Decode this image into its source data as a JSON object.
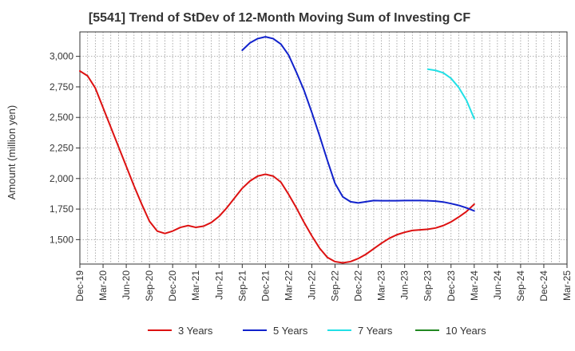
{
  "chart_data": {
    "type": "line",
    "title": "[5541]  Trend of StDev of 12-Month Moving Sum of Investing CF",
    "ylabel": "Amount (million yen)",
    "xlabel": "",
    "ylim": [
      1300,
      3200
    ],
    "yticks": [
      1500,
      1750,
      2000,
      2250,
      2500,
      2750,
      3000
    ],
    "ytick_labels": [
      "1,500",
      "1,750",
      "2,000",
      "2,250",
      "2,500",
      "2,750",
      "3,000"
    ],
    "x_start": "2019-12",
    "x_end": "2025-03",
    "xtick_labels": [
      "Dec-19",
      "Mar-20",
      "Jun-20",
      "Sep-20",
      "Dec-20",
      "Mar-21",
      "Jun-21",
      "Sep-21",
      "Dec-21",
      "Mar-22",
      "Jun-22",
      "Sep-22",
      "Dec-22",
      "Mar-23",
      "Jun-23",
      "Sep-23",
      "Dec-23",
      "Mar-24",
      "Jun-24",
      "Sep-24",
      "Dec-24",
      "Mar-25"
    ],
    "grid": true,
    "legend_position": "bottom",
    "series": [
      {
        "name": "3 Years",
        "color": "#dd1111",
        "x": [
          "2019-12",
          "2020-01",
          "2020-02",
          "2020-03",
          "2020-04",
          "2020-05",
          "2020-06",
          "2020-07",
          "2020-08",
          "2020-09",
          "2020-10",
          "2020-11",
          "2020-12",
          "2021-01",
          "2021-02",
          "2021-03",
          "2021-04",
          "2021-05",
          "2021-06",
          "2021-07",
          "2021-08",
          "2021-09",
          "2021-10",
          "2021-11",
          "2021-12",
          "2022-01",
          "2022-02",
          "2022-03",
          "2022-04",
          "2022-05",
          "2022-06",
          "2022-07",
          "2022-08",
          "2022-09",
          "2022-10",
          "2022-11",
          "2022-12",
          "2023-01",
          "2023-02",
          "2023-03",
          "2023-04",
          "2023-05",
          "2023-06",
          "2023-07",
          "2023-08",
          "2023-09",
          "2023-10",
          "2023-11",
          "2023-12",
          "2024-01",
          "2024-02",
          "2024-03"
        ],
        "values": [
          2880,
          2840,
          2740,
          2580,
          2420,
          2260,
          2100,
          1940,
          1790,
          1650,
          1570,
          1550,
          1570,
          1600,
          1615,
          1600,
          1610,
          1640,
          1690,
          1760,
          1840,
          1920,
          1980,
          2020,
          2035,
          2020,
          1970,
          1870,
          1760,
          1640,
          1530,
          1430,
          1355,
          1320,
          1310,
          1320,
          1345,
          1380,
          1425,
          1470,
          1510,
          1540,
          1560,
          1575,
          1580,
          1585,
          1595,
          1615,
          1645,
          1685,
          1730,
          1790
        ]
      },
      {
        "name": "5 Years",
        "color": "#1122cc",
        "x": [
          "2021-09",
          "2021-10",
          "2021-11",
          "2021-12",
          "2022-01",
          "2022-02",
          "2022-03",
          "2022-04",
          "2022-05",
          "2022-06",
          "2022-07",
          "2022-08",
          "2022-09",
          "2022-10",
          "2022-11",
          "2022-12",
          "2023-01",
          "2023-02",
          "2023-03",
          "2023-04",
          "2023-05",
          "2023-06",
          "2023-07",
          "2023-08",
          "2023-09",
          "2023-10",
          "2023-11",
          "2023-12",
          "2024-01",
          "2024-02",
          "2024-03"
        ],
        "values": [
          3050,
          3110,
          3145,
          3160,
          3145,
          3100,
          3010,
          2870,
          2720,
          2540,
          2350,
          2150,
          1960,
          1850,
          1810,
          1800,
          1810,
          1820,
          1818,
          1818,
          1818,
          1820,
          1820,
          1820,
          1818,
          1815,
          1808,
          1795,
          1780,
          1760,
          1735
        ]
      },
      {
        "name": "7 Years",
        "color": "#22e0e6",
        "x": [
          "2023-09",
          "2023-10",
          "2023-11",
          "2023-12",
          "2024-01",
          "2024-02",
          "2024-03"
        ],
        "values": [
          2895,
          2885,
          2865,
          2820,
          2745,
          2640,
          2490
        ]
      },
      {
        "name": "10 Years",
        "color": "#228822",
        "x": [],
        "values": []
      }
    ]
  }
}
